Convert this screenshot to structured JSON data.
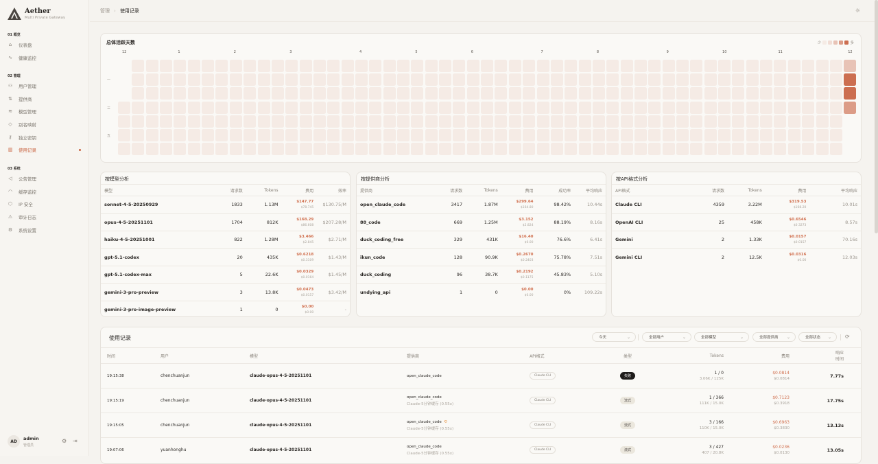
{
  "brand": {
    "name": "Aether",
    "subtitle": "Multi Private Gateway"
  },
  "sidebar": {
    "sections": [
      {
        "label": "01 概览",
        "items": [
          {
            "label": "仪表盘",
            "icon": "home-icon"
          },
          {
            "label": "健康监控",
            "icon": "activity-icon"
          }
        ]
      },
      {
        "label": "02 管理",
        "items": [
          {
            "label": "用户管理",
            "icon": "users-icon"
          },
          {
            "label": "提供商",
            "icon": "provider-icon"
          },
          {
            "label": "模型管理",
            "icon": "layers-icon"
          },
          {
            "label": "别名映射",
            "icon": "tag-icon"
          },
          {
            "label": "独立密钥",
            "icon": "key-icon"
          },
          {
            "label": "使用记录",
            "icon": "bar-chart-icon",
            "active": true
          }
        ]
      },
      {
        "label": "03 系统",
        "items": [
          {
            "label": "公告管理",
            "icon": "megaphone-icon"
          },
          {
            "label": "缓存监控",
            "icon": "gauge-icon"
          },
          {
            "label": "IP 安全",
            "icon": "shield-icon"
          },
          {
            "label": "审计日志",
            "icon": "warning-icon"
          },
          {
            "label": "系统设置",
            "icon": "settings-icon"
          }
        ]
      }
    ],
    "user": {
      "initials": "AD",
      "name": "admin",
      "role": "管理员"
    }
  },
  "header": {
    "breadcrumb": [
      "管理",
      "使用记录"
    ]
  },
  "colors": {
    "accent": "#c8623f",
    "cost": "#d0704f",
    "heat_levels": [
      "#f5ebe5",
      "#f1ddd5",
      "#e8c3b6",
      "#dc9c87",
      "#cc6e50"
    ]
  },
  "heatmap": {
    "title": "总体活跃天数",
    "legend_less": "少",
    "legend_more": "多",
    "weekday_labels": [
      {
        "row": 1,
        "label": "一"
      },
      {
        "row": 3,
        "label": "三"
      },
      {
        "row": 5,
        "label": "五"
      }
    ],
    "months": [
      {
        "col": 0,
        "label": "12"
      },
      {
        "col": 4,
        "label": "1"
      },
      {
        "col": 8,
        "label": "2"
      },
      {
        "col": 12,
        "label": "3"
      },
      {
        "col": 17,
        "label": "4"
      },
      {
        "col": 21,
        "label": "5"
      },
      {
        "col": 25,
        "label": "6"
      },
      {
        "col": 30,
        "label": "7"
      },
      {
        "col": 34,
        "label": "8"
      },
      {
        "col": 39,
        "label": "9"
      },
      {
        "col": 43,
        "label": "10"
      },
      {
        "col": 47,
        "label": "11"
      },
      {
        "col": 52,
        "label": "12"
      }
    ],
    "weeks": 53,
    "first_week_start_row": 3,
    "last_week_end_row": 3,
    "last_week_levels": [
      2,
      4,
      4,
      3
    ]
  },
  "by_model": {
    "title": "按模型分析",
    "columns": [
      "模型",
      "请求数",
      "Tokens",
      "费用",
      "效率"
    ],
    "rows": [
      [
        "sonnet-4-5-20250929",
        "1833",
        "1.13M",
        "$147.77",
        "$78.745",
        "$130.75/M"
      ],
      [
        "opus-4-5-20251101",
        "1704",
        "812K",
        "$168.29",
        "$86.608",
        "$207.28/M"
      ],
      [
        "haiku-4-5-20251001",
        "822",
        "1.28M",
        "$3.466",
        "$2.845",
        "$2.71/M"
      ],
      [
        "gpt-5.1-codex",
        "20",
        "435K",
        "$0.6218",
        "$0.3109",
        "$1.43/M"
      ],
      [
        "gpt-5.1-codex-max",
        "5",
        "22.6K",
        "$0.0329",
        "$0.0164",
        "$1.45/M"
      ],
      [
        "gemini-3-pro-preview",
        "3",
        "13.8K",
        "$0.0473",
        "$0.0157",
        "$3.42/M"
      ],
      [
        "gemini-3-pro-image-preview",
        "1",
        "0",
        "$0.00",
        "$0.00",
        "-"
      ]
    ]
  },
  "by_provider": {
    "title": "按提供商分析",
    "columns": [
      "提供商",
      "请求数",
      "Tokens",
      "费用",
      "成功率",
      "平均响应"
    ],
    "rows": [
      [
        "open_claude_code",
        "3417",
        "1.87M",
        "$299.64",
        "$164.80",
        "98.42%",
        "10.44s"
      ],
      [
        "88_code",
        "669",
        "1.25M",
        "$3.152",
        "$2.824",
        "88.19%",
        "8.16s"
      ],
      [
        "duck_coding_free",
        "329",
        "431K",
        "$16.40",
        "$0.00",
        "76.6%",
        "6.41s"
      ],
      [
        "ikun_code",
        "128",
        "90.9K",
        "$0.2670",
        "$0.2403",
        "75.78%",
        "7.51s"
      ],
      [
        "duck_coding",
        "96",
        "38.7K",
        "$0.2192",
        "$0.1175",
        "45.83%",
        "5.10s"
      ],
      [
        "undying_api",
        "1",
        "0",
        "$0.00",
        "$0.00",
        "0%",
        "109.22s"
      ]
    ]
  },
  "by_api": {
    "title": "按API格式分析",
    "columns": [
      "API格式",
      "请求数",
      "Tokens",
      "费用",
      "平均响应"
    ],
    "rows": [
      [
        "Claude CLI",
        "4359",
        "3.22M",
        "$319.53",
        "$168.20",
        "10.01s"
      ],
      [
        "OpenAI CLI",
        "25",
        "458K",
        "$0.6546",
        "$0.3273",
        "8.57s"
      ],
      [
        "Gemini",
        "2",
        "1.33K",
        "$0.0157",
        "$0.0157",
        "70.16s"
      ],
      [
        "Gemini CLI",
        "2",
        "12.5K",
        "$0.0316",
        "$0.00",
        "12.03s"
      ]
    ]
  },
  "usage": {
    "title": "使用记录",
    "filters": [
      "今天",
      "全部用户",
      "全部模型",
      "全部提供商",
      "全部状态"
    ],
    "columns": [
      "时间",
      "用户",
      "模型",
      "提供商",
      "API格式",
      "类型",
      "Tokens",
      "费用",
      "响应\n时间"
    ],
    "rows": [
      {
        "time": "19:15:38",
        "user": "chenchuanjun",
        "model": "claude-opus-4-5-20251101",
        "provider": "open_claude_code",
        "provider_sub": "",
        "retry": false,
        "api": "Claude CLI",
        "type": "失败",
        "type_kind": "fail",
        "tokens": "1 / 0",
        "tokens_sub": "3.06K / 125K",
        "cost": "$0.0814",
        "cost_sub": "$0.0814",
        "resp": "7.77s"
      },
      {
        "time": "19:15:19",
        "user": "chenchuanjun",
        "model": "claude-opus-4-5-20251101",
        "provider": "open_claude_code",
        "provider_sub": "Claude-5分钟缓存 (0.55x)",
        "retry": false,
        "api": "Claude CLI",
        "type": "流式",
        "type_kind": "stream",
        "tokens": "1 / 366",
        "tokens_sub": "111K / 15.0K",
        "cost": "$0.7123",
        "cost_sub": "$0.3918",
        "resp": "17.75s"
      },
      {
        "time": "19:15:05",
        "user": "chenchuanjun",
        "model": "claude-opus-4-5-20251101",
        "provider": "open_claude_code",
        "provider_sub": "Claude-5分钟缓存 (0.55x)",
        "retry": true,
        "api": "Claude CLI",
        "type": "流式",
        "type_kind": "stream",
        "tokens": "3 / 166",
        "tokens_sub": "110K / 15.0K",
        "cost": "$0.6963",
        "cost_sub": "$0.3830",
        "resp": "13.13s"
      },
      {
        "time": "19:07:06",
        "user": "yuanhonghu",
        "model": "claude-opus-4-5-20251101",
        "provider": "open_claude_code",
        "provider_sub": "Claude-5分钟缓存 (0.55x)",
        "retry": false,
        "api": "Claude CLI",
        "type": "流式",
        "type_kind": "stream",
        "tokens": "3 / 427",
        "tokens_sub": "407 / 20.8K",
        "cost": "$0.0236",
        "cost_sub": "$0.0130",
        "resp": "13.05s"
      }
    ]
  }
}
